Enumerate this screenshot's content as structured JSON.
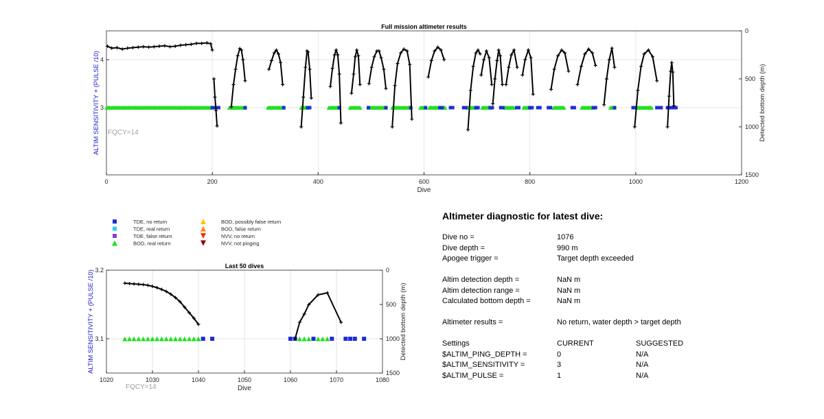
{
  "chart_data": [
    {
      "type": "scatter",
      "title": "Full mission altimeter results",
      "xlabel": "Dive",
      "ylabel_left": "ALTIM SENSITIVITY + (PULSE /10)",
      "ylabel_right": "Detected bottom depth (m)",
      "fqcy_label": "FQCY=14",
      "xlim": [
        0,
        1200
      ],
      "ylim_left": [
        1.6,
        4.6
      ],
      "ylim_right": [
        1500,
        0
      ],
      "xticks": [
        0,
        200,
        400,
        600,
        800,
        1000,
        1200
      ],
      "yticks_left": [
        3,
        4
      ],
      "yticks_right": [
        0,
        500,
        1000,
        1500
      ],
      "grid": true,
      "bod_real_return_ranges": [
        [
          0,
          200
        ],
        [
          232,
          262
        ],
        [
          305,
          335
        ],
        [
          368,
          380
        ],
        [
          420,
          440
        ],
        [
          460,
          480
        ],
        [
          495,
          528
        ],
        [
          540,
          575
        ],
        [
          593,
          603
        ],
        [
          610,
          640
        ],
        [
          683,
          698
        ],
        [
          710,
          725
        ],
        [
          753,
          770
        ],
        [
          788,
          800
        ],
        [
          845,
          865
        ],
        [
          898,
          920
        ],
        [
          952,
          960
        ],
        [
          1003,
          1030
        ]
      ],
      "tde_no_return_ranges": [
        [
          200,
          215
        ],
        [
          262,
          265
        ],
        [
          335,
          338
        ],
        [
          380,
          385
        ],
        [
          440,
          442
        ],
        [
          495,
          498
        ],
        [
          528,
          530
        ],
        [
          575,
          577
        ],
        [
          603,
          606
        ],
        [
          630,
          635
        ],
        [
          650,
          655
        ],
        [
          675,
          680
        ],
        [
          698,
          702
        ],
        [
          725,
          730
        ],
        [
          745,
          750
        ],
        [
          775,
          780
        ],
        [
          800,
          805
        ],
        [
          815,
          820
        ],
        [
          835,
          840
        ],
        [
          880,
          885
        ],
        [
          920,
          925
        ],
        [
          960,
          963
        ],
        [
          995,
          1000
        ],
        [
          1040,
          1050
        ],
        [
          1060,
          1076
        ]
      ],
      "bottom_depth_series": [
        {
          "x": [
            2,
            10,
            20,
            30,
            40,
            50,
            60,
            70,
            80,
            90,
            100,
            110,
            120,
            130,
            140,
            150,
            160,
            170,
            180,
            190,
            197,
            200
          ],
          "y": [
            160,
            180,
            175,
            190,
            180,
            175,
            170,
            165,
            170,
            165,
            160,
            155,
            165,
            160,
            150,
            145,
            140,
            130,
            130,
            125,
            135,
            200
          ]
        },
        {
          "x": [
            203,
            205,
            207,
            209
          ],
          "y": [
            500,
            690,
            830,
            990
          ]
        },
        {
          "x": [
            236,
            240,
            244,
            248,
            252,
            255,
            258,
            262
          ],
          "y": [
            790,
            560,
            400,
            260,
            185,
            200,
            300,
            520
          ]
        },
        {
          "x": [
            307,
            312,
            317,
            321,
            325,
            329,
            333
          ],
          "y": [
            400,
            310,
            230,
            200,
            240,
            330,
            560
          ]
        },
        {
          "x": [
            368,
            372,
            376,
            379,
            381,
            384,
            387
          ],
          "y": [
            1000,
            690,
            380,
            210,
            220,
            400,
            700
          ]
        },
        {
          "x": [
            423,
            427,
            431,
            434,
            437,
            440,
            443
          ],
          "y": [
            580,
            390,
            250,
            200,
            250,
            450,
            960
          ]
        },
        {
          "x": [
            463,
            467,
            470,
            473,
            476,
            479
          ],
          "y": [
            650,
            450,
            270,
            200,
            260,
            560
          ]
        },
        {
          "x": [
            496,
            501,
            506,
            511,
            515,
            519,
            524,
            528
          ],
          "y": [
            550,
            380,
            270,
            210,
            210,
            280,
            400,
            600
          ]
        },
        {
          "x": [
            540,
            545,
            550,
            556,
            562,
            568,
            573,
            577
          ],
          "y": [
            1000,
            570,
            340,
            230,
            190,
            210,
            350,
            920
          ]
        },
        {
          "x": [
            608,
            614,
            620,
            626,
            632,
            638
          ],
          "y": [
            480,
            310,
            210,
            170,
            200,
            300
          ]
        },
        {
          "x": [
            683,
            688,
            693,
            698,
            702,
            706
          ],
          "y": [
            1030,
            620,
            370,
            230,
            200,
            240
          ]
        },
        {
          "x": [
            708,
            713,
            718,
            723,
            728
          ],
          "y": [
            460,
            300,
            210,
            280,
            560
          ]
        },
        {
          "x": [
            730,
            734,
            738,
            741,
            744,
            748
          ],
          "y": [
            760,
            500,
            310,
            200,
            260,
            560
          ]
        },
        {
          "x": [
            755,
            760,
            765,
            770,
            776
          ],
          "y": [
            560,
            380,
            250,
            200,
            380
          ]
        },
        {
          "x": [
            786,
            791,
            797,
            802,
            806
          ],
          "y": [
            460,
            300,
            200,
            280,
            660
          ]
        },
        {
          "x": [
            840,
            846,
            853,
            860,
            866,
            873
          ],
          "y": [
            610,
            400,
            260,
            200,
            230,
            420
          ]
        },
        {
          "x": [
            890,
            897,
            904,
            911,
            918,
            924
          ],
          "y": [
            560,
            370,
            240,
            190,
            230,
            360
          ]
        },
        {
          "x": [
            940,
            945,
            950,
            955,
            960
          ],
          "y": [
            770,
            500,
            300,
            180,
            380
          ]
        },
        {
          "x": [
            998,
            1004,
            1010,
            1016,
            1024,
            1032,
            1040
          ],
          "y": [
            1000,
            620,
            370,
            240,
            200,
            270,
            520
          ]
        },
        {
          "x": [
            1060,
            1063,
            1066,
            1068,
            1070,
            1072
          ],
          "y": [
            1000,
            680,
            420,
            330,
            430,
            780
          ]
        }
      ]
    },
    {
      "type": "scatter",
      "title": "Last 50 dives",
      "xlabel": "Dive",
      "ylabel_left": "ALTIM SENSITIVITY + (PULSE /10)",
      "ylabel_right": "Detected bottom depth (m)",
      "fqcy_label": "FQCY=14",
      "xlim": [
        1020,
        1080
      ],
      "ylim_left": [
        3.05,
        3.2
      ],
      "ylim_right": [
        1500,
        0
      ],
      "xticks": [
        1020,
        1030,
        1040,
        1050,
        1060,
        1070,
        1080
      ],
      "yticks_left": [
        3.1,
        3.2
      ],
      "yticks_right": [
        0,
        500,
        1000,
        1500
      ],
      "grid": true,
      "bod_real_return": [
        1024,
        1025,
        1026,
        1027,
        1028,
        1029,
        1030,
        1031,
        1032,
        1033,
        1034,
        1035,
        1036,
        1037,
        1038,
        1039,
        1040,
        1062,
        1063,
        1064,
        1066,
        1067,
        1068
      ],
      "tde_no_return": [
        1041,
        1043,
        1060,
        1061,
        1065,
        1069,
        1072,
        1073,
        1074,
        1076
      ],
      "bottom_depth_series": [
        {
          "x": [
            1024,
            1025,
            1026,
            1027,
            1028,
            1029,
            1030,
            1031,
            1032,
            1033,
            1034,
            1035,
            1036,
            1037,
            1038,
            1039,
            1040
          ],
          "y": [
            190,
            195,
            200,
            205,
            210,
            220,
            235,
            255,
            280,
            310,
            350,
            400,
            460,
            540,
            620,
            700,
            790
          ]
        },
        {
          "x": [
            1061,
            1062,
            1063,
            1064,
            1066,
            1068,
            1071
          ],
          "y": [
            1000,
            760,
            640,
            500,
            360,
            330,
            760
          ]
        }
      ]
    }
  ],
  "legend": [
    {
      "label": "TDE, no return",
      "marker": "square",
      "color": "#1f2dd8"
    },
    {
      "label": "TDE, real return",
      "marker": "square",
      "color": "#2bd1e0"
    },
    {
      "label": "TDE, false return",
      "marker": "square",
      "color": "#8a3fd6"
    },
    {
      "label": "BOD, real return",
      "marker": "triangle-up",
      "color": "#22e022"
    },
    {
      "label": "BOD, possibly false return",
      "marker": "triangle-up",
      "color": "#ffc400"
    },
    {
      "label": "BOD, false return",
      "marker": "triangle-up",
      "color": "#ff8c00"
    },
    {
      "label": "NVV, no return",
      "marker": "triangle-down",
      "color": "#ff2a00"
    },
    {
      "label": "NVV, not pinging",
      "marker": "triangle-down",
      "color": "#8b0000"
    }
  ],
  "colors": {
    "axis_label": "#1a1acc",
    "fqcy": "#a0a0a0",
    "line": "#000000",
    "grid": "#e6e6e6"
  },
  "diagnostic": {
    "title": "Altimeter diagnostic for latest dive:",
    "dive_no_label": "Dive no =",
    "dive_no": "1076",
    "dive_depth_label": "Dive depth =",
    "dive_depth": "990 m",
    "apogee_label": "Apogee trigger =",
    "apogee": "Target depth exceeded",
    "detect_depth_label": "Altim detection depth =",
    "detect_depth": "NaN m",
    "detect_range_label": "Altim detection range =",
    "detect_range": "NaN m",
    "calc_bottom_label": "Calculated bottom depth =",
    "calc_bottom": "NaN m",
    "results_label": "Altimeter results =",
    "results": "No return, water depth > target depth",
    "settings_label": "Settings",
    "current_label": "CURRENT",
    "suggested_label": "SUGGESTED",
    "settings": [
      {
        "name": "$ALTIM_PING_DEPTH =",
        "current": "0",
        "suggested": "N/A"
      },
      {
        "name": "$ALTIM_SENSITIVITY =",
        "current": "3",
        "suggested": "N/A"
      },
      {
        "name": "$ALTIM_PULSE =",
        "current": "1",
        "suggested": "N/A"
      }
    ]
  }
}
